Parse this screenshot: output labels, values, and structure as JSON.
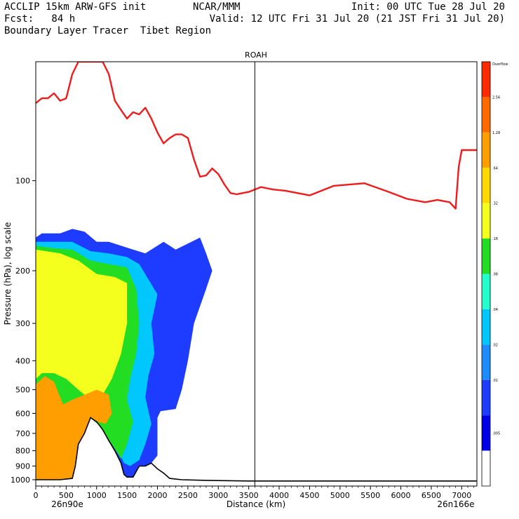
{
  "header": {
    "line1_left": "ACCLIP 15km ARW-GFS init",
    "line1_mid": "NCAR/MMM",
    "line1_right": "Init: 00 UTC Tue 28 Jul 20",
    "line2_left": "Fcst:   84 h",
    "line2_right": "Valid: 12 UTC Fri 31 Jul 20 (21 JST Fri 31 Jul 20)",
    "line3_left": "Boundary Layer Tracer  Tibet Region"
  },
  "chart_data": {
    "type": "heatmap",
    "title": "ROAH",
    "xlabel": "Distance (km)",
    "ylabel": "Pressure (hPa), log scale",
    "xlim": [
      0,
      7250
    ],
    "ylim": [
      1050,
      40
    ],
    "y_scale": "log",
    "x_ticks": [
      0,
      500,
      1000,
      1500,
      2000,
      2500,
      3000,
      3500,
      4000,
      4500,
      5000,
      5500,
      6000,
      6500,
      7000
    ],
    "y_ticks": [
      100,
      200,
      300,
      400,
      500,
      600,
      700,
      800,
      900,
      1000
    ],
    "x_start_label": "26n90e",
    "x_end_label": "26n166e",
    "vertical_marker_x": 3600,
    "colorbar": {
      "levels": [
        "Overflow",
        "2.56",
        "1.28",
        ".64",
        ".32",
        ".16",
        ".08",
        ".04",
        ".02",
        ".01",
        ".005"
      ],
      "colors": [
        "#ff2a00",
        "#ff6a00",
        "#ff9e00",
        "#ffd800",
        "#f5ff1e",
        "#22dd22",
        "#22ffcc",
        "#00c8ff",
        "#1e8cff",
        "#1e3cff",
        "#0000e8",
        "#ffffff"
      ]
    },
    "tropopause_line": {
      "color": "#ee1c1c",
      "points": [
        [
          0,
          55
        ],
        [
          100,
          53
        ],
        [
          200,
          53
        ],
        [
          300,
          51
        ],
        [
          400,
          54
        ],
        [
          500,
          53
        ],
        [
          600,
          44
        ],
        [
          700,
          40
        ],
        [
          800,
          40
        ],
        [
          900,
          40
        ],
        [
          1000,
          40
        ],
        [
          1100,
          40
        ],
        [
          1200,
          44
        ],
        [
          1300,
          54
        ],
        [
          1400,
          58
        ],
        [
          1500,
          62
        ],
        [
          1600,
          59
        ],
        [
          1700,
          60
        ],
        [
          1800,
          57
        ],
        [
          1900,
          62
        ],
        [
          2000,
          69
        ],
        [
          2100,
          75
        ],
        [
          2200,
          72
        ],
        [
          2300,
          70
        ],
        [
          2400,
          70
        ],
        [
          2500,
          72
        ],
        [
          2600,
          85
        ],
        [
          2700,
          97
        ],
        [
          2800,
          96
        ],
        [
          2900,
          91
        ],
        [
          3000,
          95
        ],
        [
          3100,
          103
        ],
        [
          3200,
          110
        ],
        [
          3300,
          111
        ],
        [
          3400,
          110
        ],
        [
          3500,
          109
        ],
        [
          3700,
          105
        ],
        [
          3900,
          107
        ],
        [
          4100,
          108
        ],
        [
          4500,
          112
        ],
        [
          4900,
          104
        ],
        [
          5400,
          102
        ],
        [
          5800,
          109
        ],
        [
          6100,
          115
        ],
        [
          6400,
          118
        ],
        [
          6600,
          116
        ],
        [
          6800,
          118
        ],
        [
          6900,
          124
        ],
        [
          6950,
          90
        ],
        [
          7000,
          79
        ],
        [
          7250,
          79
        ]
      ]
    },
    "terrain_line": {
      "color": "#000000",
      "points": [
        [
          0,
          1000
        ],
        [
          400,
          1000
        ],
        [
          600,
          990
        ],
        [
          650,
          900
        ],
        [
          700,
          760
        ],
        [
          800,
          700
        ],
        [
          900,
          620
        ],
        [
          1000,
          640
        ],
        [
          1100,
          680
        ],
        [
          1200,
          740
        ],
        [
          1300,
          800
        ],
        [
          1400,
          880
        ],
        [
          1450,
          960
        ],
        [
          1500,
          980
        ],
        [
          1600,
          980
        ],
        [
          1700,
          900
        ],
        [
          1800,
          900
        ],
        [
          1900,
          880
        ],
        [
          2000,
          920
        ],
        [
          2100,
          950
        ],
        [
          2200,
          990
        ],
        [
          2400,
          1000
        ],
        [
          2800,
          1005
        ],
        [
          3500,
          1010
        ],
        [
          7250,
          1010
        ]
      ]
    },
    "tracer_layers": [
      {
        "level": "0.01-0.02",
        "color": "#1e3cff",
        "outline": [
          [
            0,
            155
          ],
          [
            100,
            150
          ],
          [
            400,
            150
          ],
          [
            600,
            145
          ],
          [
            800,
            148
          ],
          [
            1000,
            160
          ],
          [
            1200,
            160
          ],
          [
            1600,
            170
          ],
          [
            1800,
            175
          ],
          [
            2100,
            160
          ],
          [
            2300,
            170
          ],
          [
            2700,
            155
          ],
          [
            2800,
            175
          ],
          [
            2900,
            200
          ],
          [
            2800,
            230
          ],
          [
            2600,
            300
          ],
          [
            2500,
            400
          ],
          [
            2400,
            500
          ],
          [
            2300,
            580
          ],
          [
            2050,
            590
          ],
          [
            2000,
            620
          ],
          [
            2000,
            830
          ],
          [
            1900,
            880
          ],
          [
            1800,
            900
          ],
          [
            1700,
            900
          ],
          [
            1600,
            980
          ],
          [
            1500,
            980
          ],
          [
            1450,
            960
          ],
          [
            1400,
            880
          ],
          [
            1300,
            800
          ],
          [
            1200,
            740
          ],
          [
            1100,
            680
          ],
          [
            1000,
            640
          ],
          [
            900,
            620
          ],
          [
            800,
            700
          ],
          [
            700,
            760
          ],
          [
            650,
            900
          ],
          [
            600,
            990
          ],
          [
            400,
            1000
          ],
          [
            0,
            1000
          ]
        ]
      },
      {
        "level": "0.04-0.08",
        "color": "#00c8ff",
        "outline": [
          [
            0,
            160
          ],
          [
            300,
            160
          ],
          [
            600,
            160
          ],
          [
            900,
            172
          ],
          [
            1200,
            175
          ],
          [
            1500,
            180
          ],
          [
            1700,
            190
          ],
          [
            2000,
            240
          ],
          [
            1900,
            300
          ],
          [
            1950,
            380
          ],
          [
            1850,
            450
          ],
          [
            1800,
            530
          ],
          [
            1900,
            650
          ],
          [
            1800,
            760
          ],
          [
            1700,
            860
          ],
          [
            1550,
            900
          ],
          [
            1450,
            880
          ],
          [
            1300,
            760
          ],
          [
            1100,
            660
          ],
          [
            900,
            600
          ],
          [
            700,
            700
          ],
          [
            500,
            900
          ],
          [
            300,
            950
          ],
          [
            0,
            950
          ]
        ]
      },
      {
        "level": "0.16-0.32",
        "color": "#22dd22",
        "outline": [
          [
            0,
            165
          ],
          [
            300,
            168
          ],
          [
            600,
            170
          ],
          [
            900,
            185
          ],
          [
            1200,
            190
          ],
          [
            1500,
            195
          ],
          [
            1650,
            230
          ],
          [
            1700,
            300
          ],
          [
            1650,
            380
          ],
          [
            1550,
            460
          ],
          [
            1500,
            540
          ],
          [
            1600,
            640
          ],
          [
            1500,
            760
          ],
          [
            1400,
            850
          ],
          [
            1250,
            760
          ],
          [
            1050,
            660
          ],
          [
            850,
            610
          ],
          [
            700,
            700
          ],
          [
            500,
            880
          ],
          [
            250,
            930
          ],
          [
            0,
            930
          ]
        ]
      },
      {
        "level": "0.32-0.64",
        "color": "#f5ff1e",
        "outline": [
          [
            0,
            170
          ],
          [
            400,
            175
          ],
          [
            700,
            185
          ],
          [
            1000,
            205
          ],
          [
            1300,
            210
          ],
          [
            1500,
            220
          ],
          [
            1500,
            300
          ],
          [
            1400,
            380
          ],
          [
            1250,
            460
          ],
          [
            1100,
            520
          ],
          [
            900,
            540
          ],
          [
            700,
            500
          ],
          [
            500,
            460
          ],
          [
            300,
            440
          ],
          [
            100,
            440
          ],
          [
            0,
            460
          ]
        ]
      },
      {
        "level": "0.64-1.28",
        "color": "#ff9e00",
        "outline": [
          [
            0,
            480
          ],
          [
            150,
            450
          ],
          [
            300,
            470
          ],
          [
            450,
            560
          ],
          [
            600,
            540
          ],
          [
            800,
            520
          ],
          [
            1000,
            500
          ],
          [
            1200,
            520
          ],
          [
            1250,
            600
          ],
          [
            1150,
            650
          ],
          [
            1000,
            640
          ],
          [
            900,
            620
          ],
          [
            800,
            700
          ],
          [
            700,
            760
          ],
          [
            650,
            900
          ],
          [
            600,
            990
          ],
          [
            400,
            1000
          ],
          [
            0,
            1000
          ]
        ]
      }
    ]
  }
}
